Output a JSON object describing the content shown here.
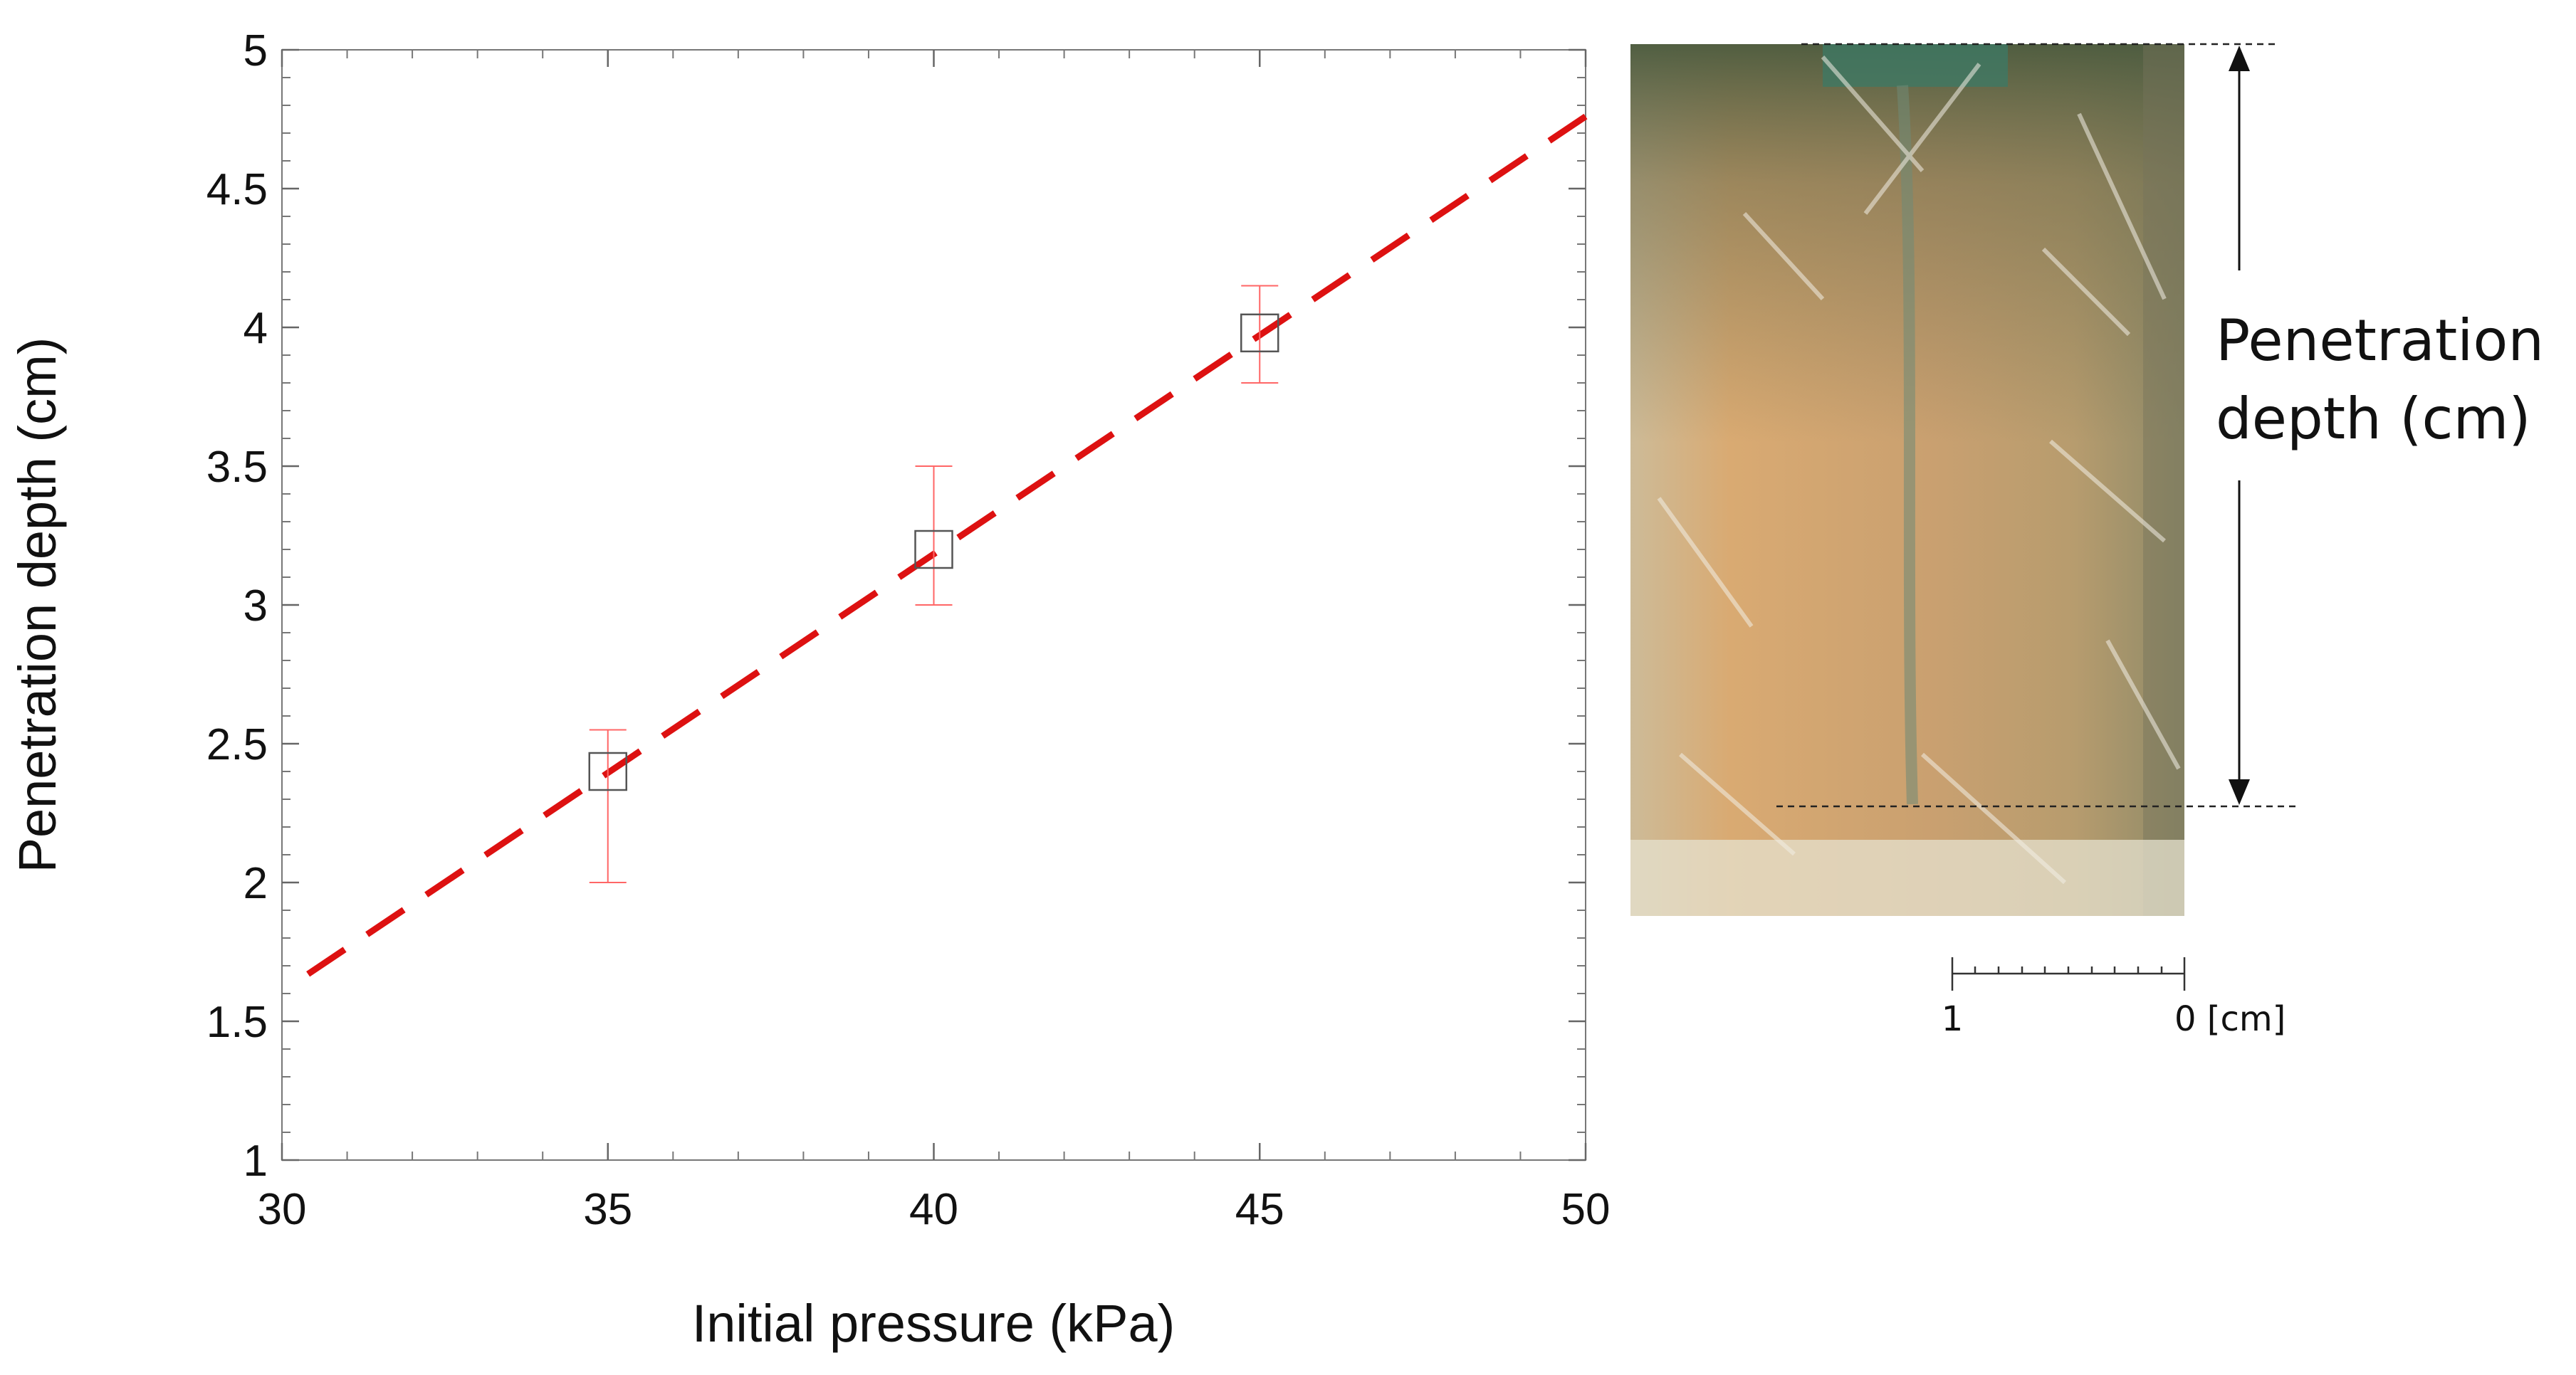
{
  "chart_data": {
    "type": "scatter",
    "xlabel": "Initial pressure (kPa)",
    "ylabel": "Penetration depth (cm)",
    "xlim": [
      30,
      50
    ],
    "ylim": [
      1,
      5
    ],
    "x_ticks": [
      "30",
      "35",
      "40",
      "45",
      "50"
    ],
    "y_ticks": [
      "1",
      "1.5",
      "2",
      "2.5",
      "3",
      "3.5",
      "4",
      "4.5",
      "5"
    ],
    "points": [
      {
        "x": 35,
        "y": 2.4,
        "err_low": 2.0,
        "err_high": 2.55
      },
      {
        "x": 40,
        "y": 3.2,
        "err_low": 3.0,
        "err_high": 3.5
      },
      {
        "x": 45,
        "y": 3.98,
        "err_low": 3.8,
        "err_high": 4.15
      }
    ],
    "fit_line": {
      "style": "dashed",
      "x": [
        30.4,
        50
      ],
      "y": [
        1.67,
        4.76
      ]
    },
    "grid": false,
    "colors": {
      "marker": "#555555",
      "error_bars": "#ff6666",
      "fit_line": "#dd1111"
    }
  },
  "photo": {
    "label_line1": "Penetration",
    "label_line2": "depth (cm)",
    "scale_left": "1",
    "scale_right": "0 [cm]"
  }
}
